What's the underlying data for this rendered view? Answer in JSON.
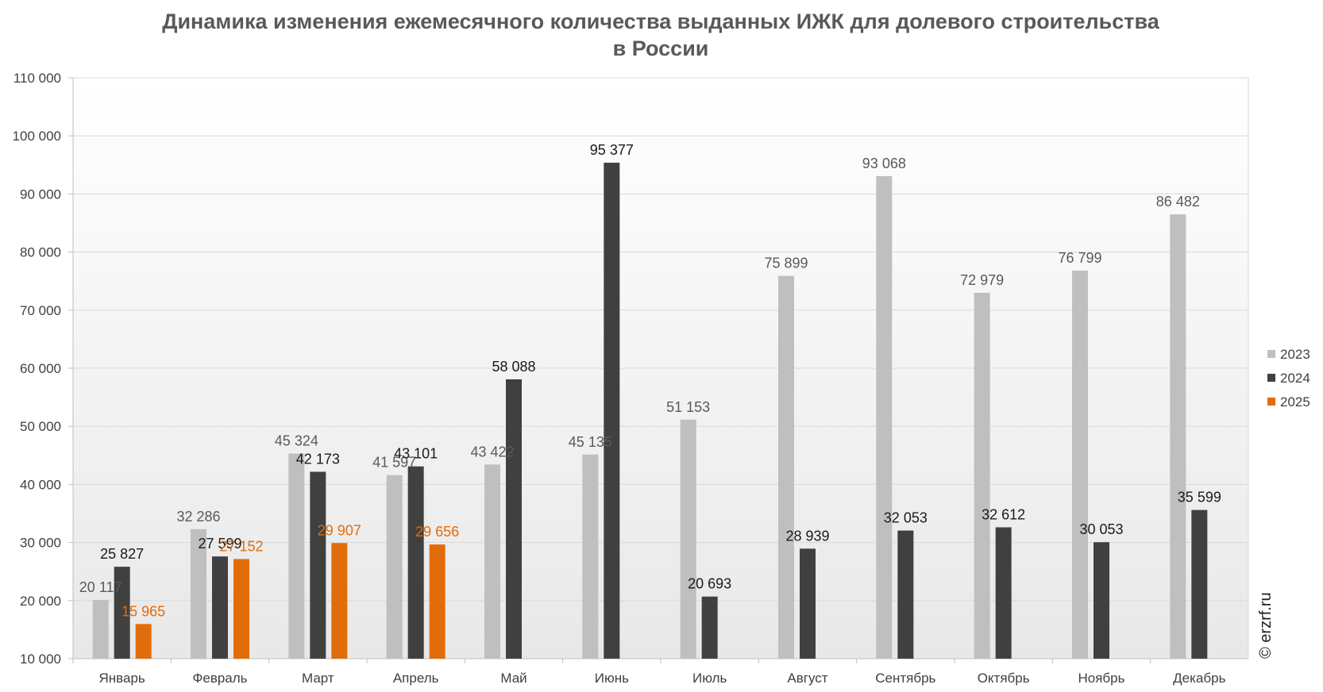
{
  "chart_data": {
    "type": "bar",
    "title": [
      "Динамика изменения ежемесячного количества выданных ИЖК для долевого строительства",
      "в России"
    ],
    "categories": [
      "Январь",
      "Февраль",
      "Март",
      "Апрель",
      "Май",
      "Июнь",
      "Июль",
      "Август",
      "Сентябрь",
      "Октябрь",
      "Ноябрь",
      "Декабрь"
    ],
    "series": [
      {
        "name": "2023",
        "color": "#bfbfbf",
        "label_color": "#595959",
        "values": [
          20117,
          32286,
          45324,
          41597,
          43422,
          45135,
          51153,
          75899,
          93068,
          72979,
          76799,
          86482
        ],
        "labels": [
          "20 117",
          "32 286",
          "45 324",
          "41 597",
          "43 422",
          "45 135",
          "51 153",
          "75 899",
          "93 068",
          "72 979",
          "76 799",
          "86 482"
        ]
      },
      {
        "name": "2024",
        "color": "#404040",
        "label_color": "#1a1a1a",
        "values": [
          25827,
          27599,
          42173,
          43101,
          58088,
          95377,
          20693,
          28939,
          32053,
          32612,
          30053,
          35599
        ],
        "labels": [
          "25 827",
          "27 599",
          "42 173",
          "43 101",
          "58 088",
          "95 377",
          "20 693",
          "28 939",
          "32 053",
          "32 612",
          "30 053",
          "35 599"
        ]
      },
      {
        "name": "2025",
        "color": "#e36c0a",
        "label_color": "#e36c0a",
        "values": [
          15965,
          27152,
          29907,
          29656,
          null,
          null,
          null,
          null,
          null,
          null,
          null,
          null
        ],
        "labels": [
          "15 965",
          "27 152",
          "29 907",
          "29 656",
          null,
          null,
          null,
          null,
          null,
          null,
          null,
          null
        ]
      }
    ],
    "ylim": [
      10000,
      110000
    ],
    "yticks": [
      10000,
      20000,
      30000,
      40000,
      50000,
      60000,
      70000,
      80000,
      90000,
      100000,
      110000
    ],
    "ytick_labels": [
      "10 000",
      "20 000",
      "30 000",
      "40 000",
      "50 000",
      "60 000",
      "70 000",
      "80 000",
      "90 000",
      "100 000",
      "110 000"
    ],
    "xlabel": "",
    "ylabel": "",
    "grid": true,
    "legend_position": "right"
  },
  "credit": "© erzrf.ru"
}
